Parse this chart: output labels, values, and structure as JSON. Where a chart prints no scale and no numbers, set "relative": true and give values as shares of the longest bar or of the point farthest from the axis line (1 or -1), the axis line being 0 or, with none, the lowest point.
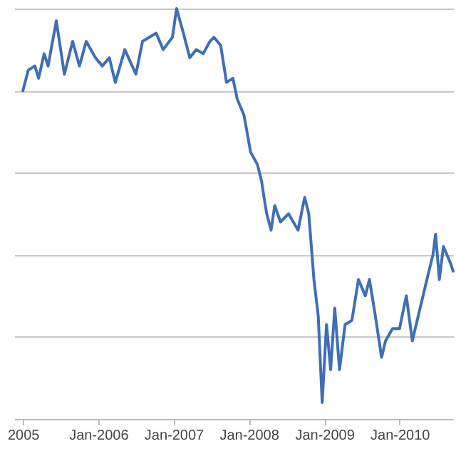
{
  "chart_data": {
    "type": "line",
    "relative": true,
    "grid": "y",
    "xlim": [
      "2004-11-20",
      "2010-09-18"
    ],
    "xticks": [
      {
        "value": "2005-01-01",
        "label": "2005"
      },
      {
        "value": "2006-01-01",
        "label": "Jan-2006"
      },
      {
        "value": "2007-01-01",
        "label": "Jan-2007"
      },
      {
        "value": "2008-01-01",
        "label": "Jan-2008"
      },
      {
        "value": "2009-01-01",
        "label": "Jan-2009"
      },
      {
        "value": "2010-01-01",
        "label": "Jan-2010"
      }
    ],
    "series": [
      {
        "color": "#3f6fb5",
        "x": [
          "2005-01-01",
          "2005-01-27",
          "2005-02-28",
          "2005-03-18",
          "2005-04-14",
          "2005-05-03",
          "2005-06-12",
          "2005-07-21",
          "2005-08-30",
          "2005-10-02",
          "2005-11-04",
          "2005-12-19",
          "2006-01-21",
          "2006-02-24",
          "2006-03-25",
          "2006-05-10",
          "2006-07-03",
          "2006-08-04",
          "2006-10-09",
          "2006-11-12",
          "2006-12-27",
          "2007-01-16",
          "2007-02-18",
          "2007-03-21",
          "2007-04-22",
          "2007-05-25",
          "2007-06-27",
          "2007-07-16",
          "2007-08-18",
          "2007-09-15",
          "2007-10-16",
          "2007-11-06",
          "2007-12-09",
          "2008-01-10",
          "2008-02-12",
          "2008-03-03",
          "2008-03-15",
          "2008-03-28",
          "2008-04-18",
          "2008-05-06",
          "2008-06-03",
          "2008-07-12",
          "2008-08-27",
          "2008-09-28",
          "2008-10-18",
          "2008-11-12",
          "2008-12-03",
          "2008-12-22",
          "2009-01-12",
          "2009-02-01",
          "2009-02-21",
          "2009-03-16",
          "2009-04-12",
          "2009-05-15",
          "2009-06-16",
          "2009-07-19",
          "2009-08-08",
          "2009-09-03",
          "2009-10-06",
          "2009-10-25",
          "2009-11-28",
          "2010-01-01",
          "2010-02-03",
          "2010-03-04",
          "2010-04-06",
          "2010-05-09",
          "2010-06-12",
          "2010-06-25",
          "2010-07-13",
          "2010-08-02",
          "2010-09-05",
          "2010-09-18"
        ],
        "values": [
          0.8,
          0.85,
          0.86,
          0.83,
          0.89,
          0.86,
          0.97,
          0.84,
          0.92,
          0.86,
          0.92,
          0.88,
          0.86,
          0.88,
          0.82,
          0.9,
          0.84,
          0.92,
          0.94,
          0.9,
          0.93,
          1.0,
          0.94,
          0.88,
          0.9,
          0.89,
          0.92,
          0.93,
          0.91,
          0.82,
          0.83,
          0.78,
          0.74,
          0.65,
          0.62,
          0.58,
          0.54,
          0.5,
          0.46,
          0.52,
          0.48,
          0.5,
          0.46,
          0.54,
          0.5,
          0.34,
          0.25,
          0.04,
          0.23,
          0.12,
          0.27,
          0.12,
          0.23,
          0.24,
          0.34,
          0.3,
          0.34,
          0.26,
          0.15,
          0.19,
          0.22,
          0.22,
          0.3,
          0.19,
          0.26,
          0.33,
          0.4,
          0.45,
          0.34,
          0.42,
          0.38,
          0.36
        ]
      }
    ]
  }
}
